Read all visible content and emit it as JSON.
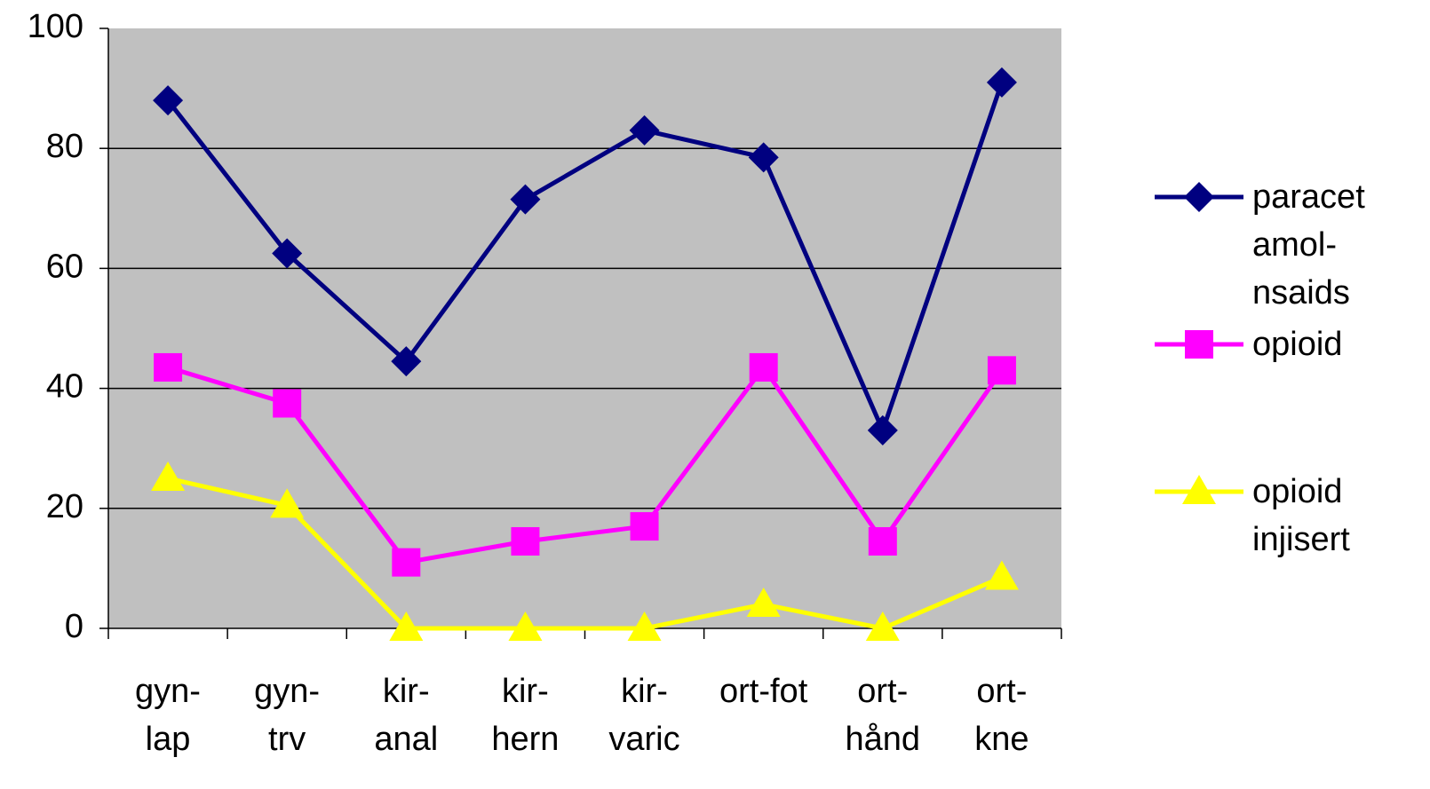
{
  "chart_data": {
    "type": "line",
    "categories": [
      "gyn-\nlap",
      "gyn-\ntrv",
      "kir-\nanal",
      "kir-\nhern",
      "kir-\nvaric",
      "ort-fot",
      "ort-\nhånd",
      "ort-\nkne"
    ],
    "series": [
      {
        "name": "paracet\namol-\nnsaids",
        "color": "#000080",
        "marker": "diamond",
        "values": [
          88,
          62.5,
          44.5,
          71.5,
          83,
          78.5,
          33,
          91
        ]
      },
      {
        "name": "opioid",
        "color": "#ff00ff",
        "marker": "square",
        "values": [
          43.5,
          37.5,
          11,
          14.5,
          17,
          43.5,
          14.5,
          43
        ]
      },
      {
        "name": "opioid\ninjisert",
        "color": "#ffff00",
        "marker": "triangle",
        "values": [
          25,
          20.5,
          0,
          0,
          0,
          4,
          0,
          8.5
        ]
      }
    ],
    "ylim": [
      0,
      100
    ],
    "yticks": [
      0,
      20,
      40,
      60,
      80,
      100
    ],
    "grid": true,
    "legend": "right"
  }
}
